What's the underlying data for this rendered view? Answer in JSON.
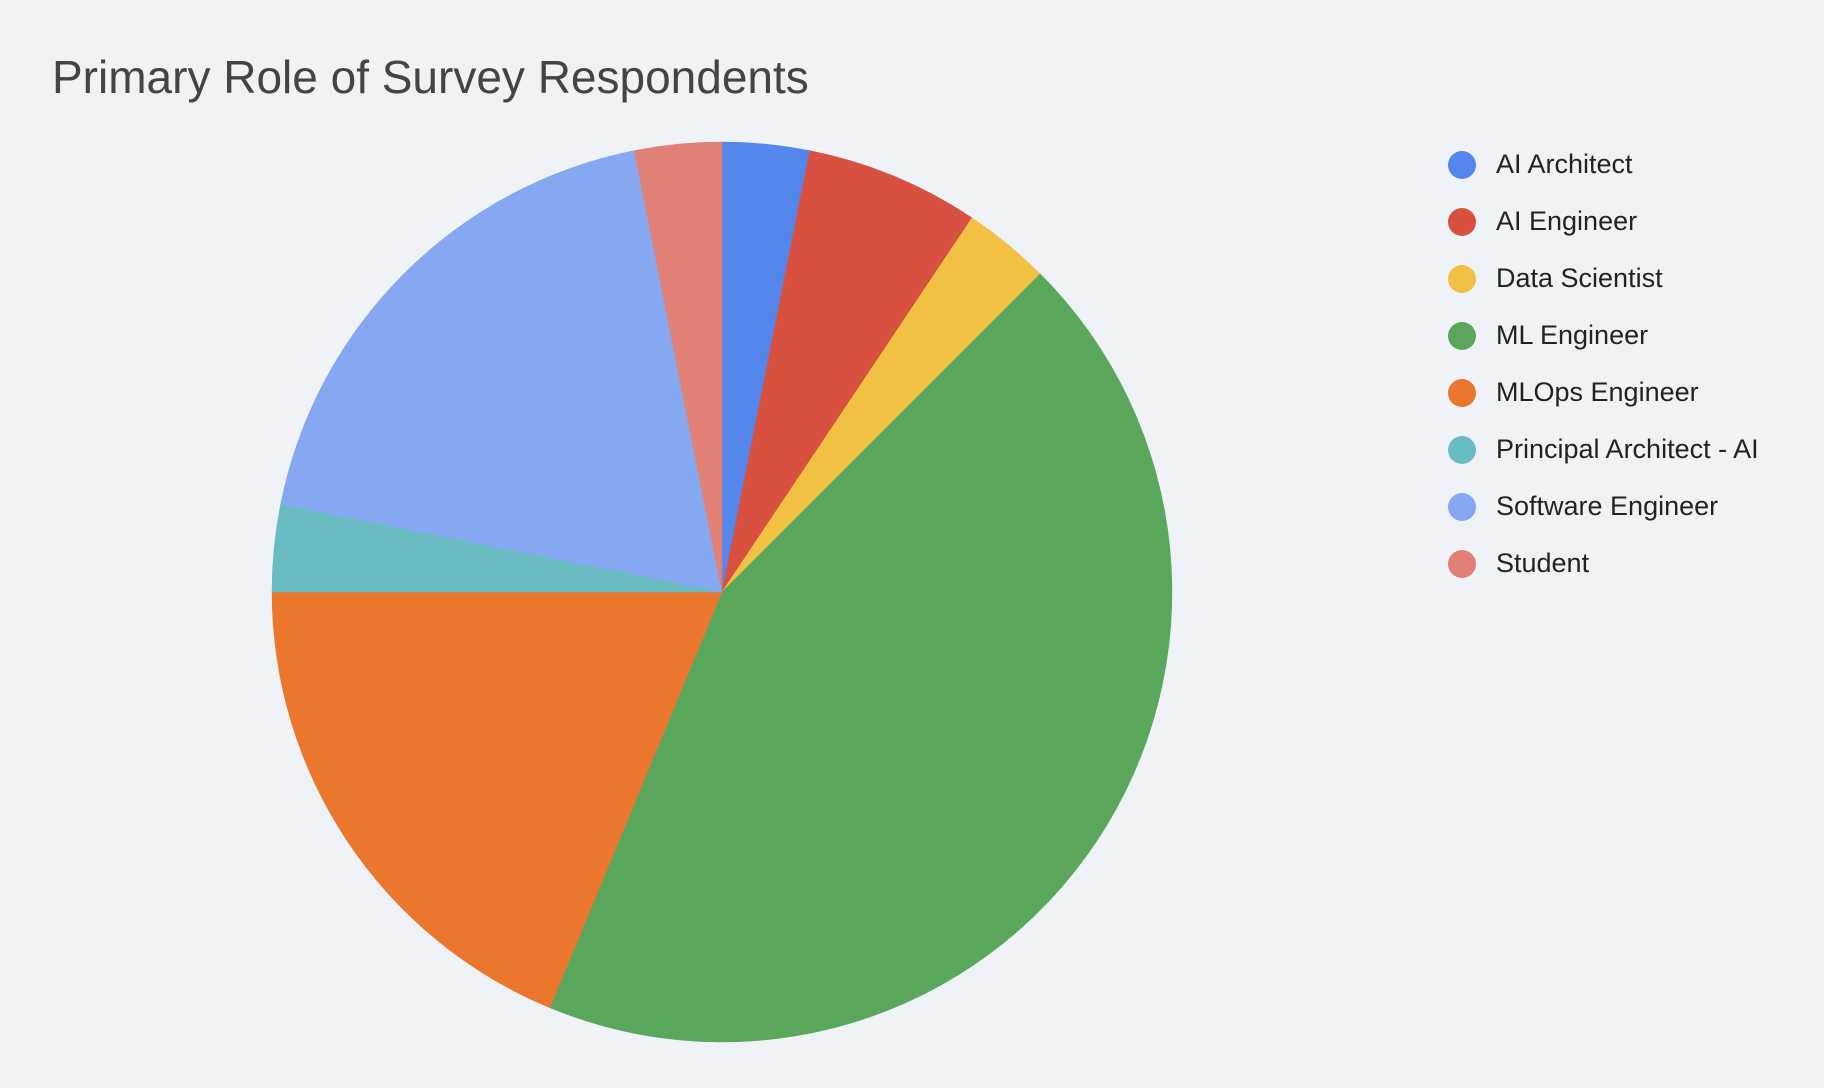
{
  "chart_data": {
    "type": "pie",
    "title": "Primary Role of Survey Respondents",
    "legend_position": "right",
    "start_angle_deg": 0,
    "direction": "clockwise",
    "slices": [
      {
        "label": "AI Architect",
        "value": 1,
        "color": "#5586ec"
      },
      {
        "label": "AI Engineer",
        "value": 2,
        "color": "#d85140"
      },
      {
        "label": "Data Scientist",
        "value": 1,
        "color": "#f2c043"
      },
      {
        "label": "ML Engineer",
        "value": 14,
        "color": "#5aa65b"
      },
      {
        "label": "MLOps Engineer",
        "value": 6,
        "color": "#eb772f"
      },
      {
        "label": "Principal Architect - AI",
        "value": 1,
        "color": "#68bcc2"
      },
      {
        "label": "Software Engineer",
        "value": 6,
        "color": "#86a8f0"
      },
      {
        "label": "Student",
        "value": 1,
        "color": "#e18074"
      }
    ]
  }
}
